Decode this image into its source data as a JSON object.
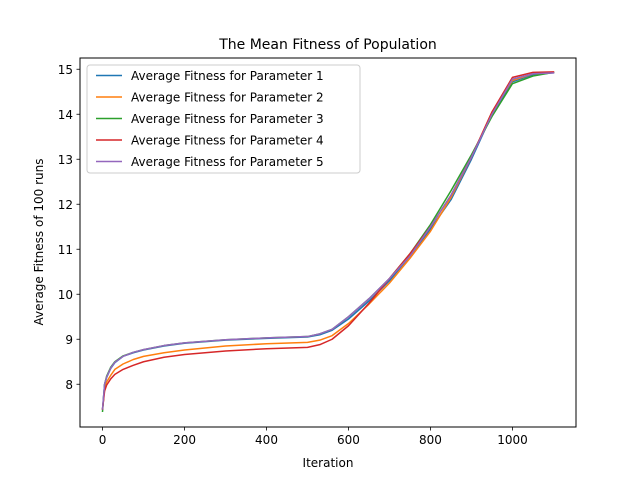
{
  "chart_data": {
    "type": "line",
    "title": "The Mean Fitness of Population",
    "xlabel": "Iteration",
    "ylabel": "Average Fitness of 100 runs",
    "xlim": [
      -55,
      1155
    ],
    "ylim": [
      7.05,
      15.25
    ],
    "xticks": [
      0,
      200,
      400,
      600,
      800,
      1000
    ],
    "yticks": [
      8,
      9,
      10,
      11,
      12,
      13,
      14,
      15
    ],
    "grid": false,
    "legend_position": "upper left",
    "series": [
      {
        "name": "Average Fitness for Parameter 1",
        "color": "#1f77b4",
        "points": [
          [
            0,
            7.45
          ],
          [
            5,
            8.0
          ],
          [
            10,
            8.15
          ],
          [
            20,
            8.35
          ],
          [
            30,
            8.48
          ],
          [
            50,
            8.62
          ],
          [
            75,
            8.7
          ],
          [
            100,
            8.76
          ],
          [
            150,
            8.85
          ],
          [
            200,
            8.91
          ],
          [
            300,
            8.98
          ],
          [
            400,
            9.02
          ],
          [
            500,
            9.05
          ],
          [
            530,
            9.1
          ],
          [
            560,
            9.2
          ],
          [
            600,
            9.45
          ],
          [
            650,
            9.85
          ],
          [
            700,
            10.3
          ],
          [
            750,
            10.85
          ],
          [
            800,
            11.45
          ],
          [
            850,
            12.1
          ],
          [
            900,
            13.0
          ],
          [
            950,
            14.0
          ],
          [
            1000,
            14.72
          ],
          [
            1050,
            14.88
          ],
          [
            1100,
            14.92
          ]
        ]
      },
      {
        "name": "Average Fitness for Parameter 2",
        "color": "#ff7f0e",
        "points": [
          [
            0,
            7.45
          ],
          [
            5,
            7.9
          ],
          [
            10,
            8.05
          ],
          [
            20,
            8.2
          ],
          [
            30,
            8.33
          ],
          [
            50,
            8.45
          ],
          [
            75,
            8.55
          ],
          [
            100,
            8.62
          ],
          [
            150,
            8.7
          ],
          [
            200,
            8.76
          ],
          [
            300,
            8.85
          ],
          [
            400,
            8.9
          ],
          [
            500,
            8.93
          ],
          [
            530,
            8.98
          ],
          [
            560,
            9.08
          ],
          [
            600,
            9.35
          ],
          [
            650,
            9.78
          ],
          [
            700,
            10.25
          ],
          [
            750,
            10.8
          ],
          [
            800,
            11.4
          ],
          [
            850,
            12.15
          ],
          [
            900,
            13.05
          ],
          [
            950,
            14.05
          ],
          [
            1000,
            14.75
          ],
          [
            1050,
            14.9
          ],
          [
            1100,
            14.93
          ]
        ]
      },
      {
        "name": "Average Fitness for Parameter 3",
        "color": "#2ca02c",
        "points": [
          [
            0,
            7.4
          ],
          [
            5,
            8.0
          ],
          [
            10,
            8.18
          ],
          [
            20,
            8.38
          ],
          [
            30,
            8.5
          ],
          [
            50,
            8.63
          ],
          [
            75,
            8.71
          ],
          [
            100,
            8.77
          ],
          [
            150,
            8.86
          ],
          [
            200,
            8.92
          ],
          [
            300,
            8.99
          ],
          [
            400,
            9.03
          ],
          [
            500,
            9.06
          ],
          [
            530,
            9.12
          ],
          [
            560,
            9.22
          ],
          [
            600,
            9.5
          ],
          [
            650,
            9.9
          ],
          [
            700,
            10.35
          ],
          [
            750,
            10.9
          ],
          [
            800,
            11.55
          ],
          [
            850,
            12.3
          ],
          [
            900,
            13.1
          ],
          [
            950,
            13.95
          ],
          [
            1000,
            14.68
          ],
          [
            1050,
            14.85
          ],
          [
            1100,
            14.93
          ]
        ]
      },
      {
        "name": "Average Fitness for Parameter 4",
        "color": "#d62728",
        "points": [
          [
            0,
            7.45
          ],
          [
            5,
            7.85
          ],
          [
            10,
            7.98
          ],
          [
            20,
            8.12
          ],
          [
            30,
            8.22
          ],
          [
            50,
            8.33
          ],
          [
            75,
            8.42
          ],
          [
            100,
            8.5
          ],
          [
            150,
            8.6
          ],
          [
            200,
            8.66
          ],
          [
            300,
            8.74
          ],
          [
            400,
            8.79
          ],
          [
            500,
            8.82
          ],
          [
            530,
            8.88
          ],
          [
            560,
            9.0
          ],
          [
            600,
            9.3
          ],
          [
            650,
            9.8
          ],
          [
            700,
            10.35
          ],
          [
            750,
            10.9
          ],
          [
            800,
            11.5
          ],
          [
            850,
            12.2
          ],
          [
            900,
            13.05
          ],
          [
            950,
            14.05
          ],
          [
            1000,
            14.82
          ],
          [
            1050,
            14.93
          ],
          [
            1100,
            14.94
          ]
        ]
      },
      {
        "name": "Average Fitness for Parameter 5",
        "color": "#9467bd",
        "points": [
          [
            0,
            7.45
          ],
          [
            5,
            8.0
          ],
          [
            10,
            8.16
          ],
          [
            20,
            8.36
          ],
          [
            30,
            8.49
          ],
          [
            50,
            8.62
          ],
          [
            75,
            8.71
          ],
          [
            100,
            8.77
          ],
          [
            150,
            8.86
          ],
          [
            200,
            8.92
          ],
          [
            300,
            8.99
          ],
          [
            400,
            9.03
          ],
          [
            500,
            9.06
          ],
          [
            530,
            9.12
          ],
          [
            560,
            9.22
          ],
          [
            600,
            9.5
          ],
          [
            650,
            9.9
          ],
          [
            700,
            10.35
          ],
          [
            750,
            10.85
          ],
          [
            800,
            11.5
          ],
          [
            850,
            12.2
          ],
          [
            900,
            13.05
          ],
          [
            950,
            14.0
          ],
          [
            1000,
            14.78
          ],
          [
            1050,
            14.9
          ],
          [
            1100,
            14.92
          ]
        ]
      }
    ]
  }
}
